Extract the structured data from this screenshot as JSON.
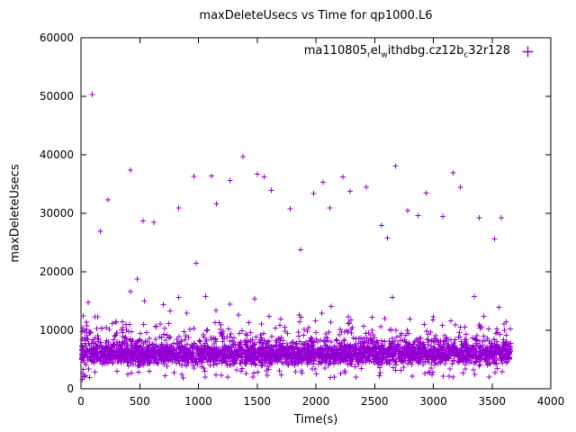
{
  "chart_data": {
    "type": "scatter",
    "title": "maxDeleteUsecs vs Time for qp1000.L6",
    "xlabel": "Time(s)",
    "ylabel": "maxDeleteUsecs",
    "xlim": [
      0,
      4000
    ],
    "ylim": [
      0,
      60000
    ],
    "x_ticks": [
      0,
      500,
      1000,
      1500,
      2000,
      2500,
      3000,
      3500,
      4000
    ],
    "y_ticks": [
      0,
      10000,
      20000,
      30000,
      40000,
      50000,
      60000
    ],
    "grid": false,
    "marker": "plus",
    "color": "#9400d3",
    "legend": {
      "position": "top-center-right-inside",
      "label_plain": "ma110805_rel_withdbg.cz12b_c32r128",
      "parts": [
        {
          "text": "ma110805"
        },
        {
          "text": "r",
          "sub": true
        },
        {
          "text": "el"
        },
        {
          "text": "w",
          "sub": true
        },
        {
          "text": "ithdbg.cz12b"
        },
        {
          "text": "c",
          "sub": true
        },
        {
          "text": "32r128"
        }
      ]
    },
    "outliers": [
      [
        95,
        50300
      ],
      [
        165,
        26900
      ],
      [
        230,
        32300
      ],
      [
        420,
        37400
      ],
      [
        530,
        28700
      ],
      [
        620,
        28500
      ],
      [
        830,
        30900
      ],
      [
        960,
        36300
      ],
      [
        1110,
        36400
      ],
      [
        1155,
        31600
      ],
      [
        1270,
        35600
      ],
      [
        1380,
        39700
      ],
      [
        1500,
        36700
      ],
      [
        1560,
        36200
      ],
      [
        1620,
        33900
      ],
      [
        1780,
        30800
      ],
      [
        1870,
        23800
      ],
      [
        1980,
        33400
      ],
      [
        2060,
        35300
      ],
      [
        2120,
        30900
      ],
      [
        2230,
        36200
      ],
      [
        2290,
        33800
      ],
      [
        2430,
        34500
      ],
      [
        2560,
        27900
      ],
      [
        2610,
        25800
      ],
      [
        2680,
        38100
      ],
      [
        2780,
        30500
      ],
      [
        2870,
        29600
      ],
      [
        2940,
        33500
      ],
      [
        3080,
        29500
      ],
      [
        3170,
        36900
      ],
      [
        3230,
        34500
      ],
      [
        3390,
        29200
      ],
      [
        3520,
        25600
      ],
      [
        3580,
        29200
      ],
      [
        60,
        14800
      ],
      [
        140,
        12300
      ],
      [
        300,
        11500
      ],
      [
        420,
        16600
      ],
      [
        480,
        18800
      ],
      [
        540,
        15000
      ],
      [
        700,
        14400
      ],
      [
        760,
        13300
      ],
      [
        830,
        15600
      ],
      [
        900,
        12900
      ],
      [
        980,
        21500
      ],
      [
        1060,
        15800
      ],
      [
        1150,
        13400
      ],
      [
        1270,
        14500
      ],
      [
        1340,
        12600
      ],
      [
        1480,
        15400
      ],
      [
        1600,
        12400
      ],
      [
        1700,
        11900
      ],
      [
        1860,
        12600
      ],
      [
        2050,
        12900
      ],
      [
        2130,
        14100
      ],
      [
        2300,
        11800
      ],
      [
        2480,
        12200
      ],
      [
        2650,
        15600
      ],
      [
        2800,
        11900
      ],
      [
        3000,
        12300
      ],
      [
        3150,
        11600
      ],
      [
        3350,
        15800
      ],
      [
        3430,
        12400
      ],
      [
        3560,
        13900
      ],
      [
        3620,
        11500
      ],
      [
        10,
        1600
      ],
      [
        14,
        2600
      ],
      [
        20,
        3300
      ],
      [
        28,
        2100
      ],
      [
        12,
        9800
      ],
      [
        18,
        12500
      ],
      [
        8,
        5000
      ]
    ],
    "dense_band": {
      "description": "dense noisy band of samples",
      "seed": 7,
      "count": 3200,
      "x_min": 5,
      "x_max": 3660,
      "y_base": 3800,
      "y_spread": 2200,
      "tail_fraction": 0.1,
      "tail_base": 8000,
      "tail_spread": 5000,
      "low_fraction": 0.02,
      "low_min": 1800,
      "low_max": 3800
    }
  }
}
